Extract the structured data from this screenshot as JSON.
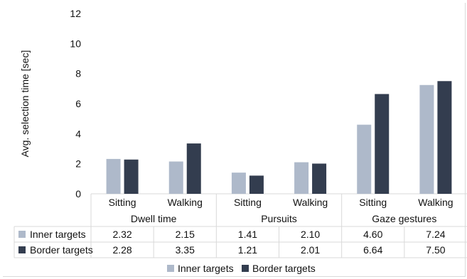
{
  "chart_data": {
    "type": "bar",
    "ylabel": "Avg. selection time [sec]",
    "ylim": [
      0,
      12
    ],
    "yticks": [
      "0",
      "2",
      "4",
      "6",
      "8",
      "10",
      "12"
    ],
    "grid": false,
    "legend_position": "bottom",
    "groups": [
      {
        "label": "Dwell time",
        "categories": [
          "Sitting",
          "Walking"
        ]
      },
      {
        "label": "Pursuits",
        "categories": [
          "Sitting",
          "Walking"
        ]
      },
      {
        "label": "Gaze gestures",
        "categories": [
          "Sitting",
          "Walking"
        ]
      }
    ],
    "categories": [
      "Sitting",
      "Walking",
      "Sitting",
      "Walking",
      "Sitting",
      "Walking"
    ],
    "series": [
      {
        "name": "Inner targets",
        "color": "#aeb9ca",
        "values": [
          2.32,
          2.15,
          1.41,
          2.1,
          4.6,
          7.24
        ],
        "labels": [
          "2.32",
          "2.15",
          "1.41",
          "2.10",
          "4.60",
          "7.24"
        ]
      },
      {
        "name": "Border targets",
        "color": "#333d4f",
        "values": [
          2.28,
          3.35,
          1.21,
          2.01,
          6.64,
          7.5
        ],
        "labels": [
          "2.28",
          "3.35",
          "1.21",
          "2.01",
          "6.64",
          "7.50"
        ]
      }
    ]
  }
}
